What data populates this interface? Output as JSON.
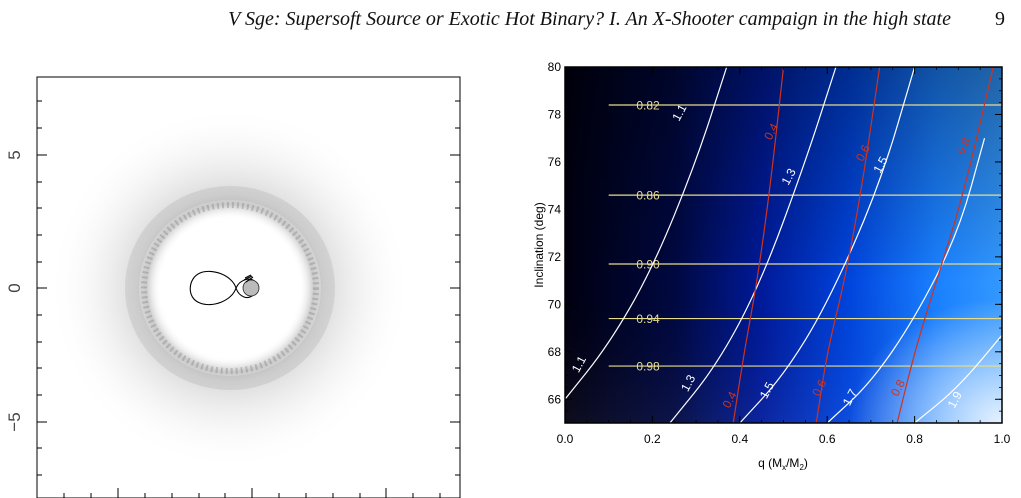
{
  "header": {
    "running_title": "V Sge: Supersoft Source or Exotic Hot Binary? I. An X-Shooter campaign in the high state",
    "page_number": "9"
  },
  "left_panel": {
    "y_ticks": [
      "5",
      "0",
      "−5"
    ]
  },
  "chart_data": [
    {
      "type": "scatter",
      "description_note": "",
      "y_tick_labels": [
        "5",
        "0",
        "−5"
      ],
      "ylim": [
        -7.5,
        7.5
      ]
    },
    {
      "type": "heatmap",
      "xlabel": "q (M_x/M_2)",
      "ylabel": "Inclination (deg)",
      "xlim": [
        0.0,
        1.0
      ],
      "ylim": [
        65,
        80
      ],
      "x_tick_labels": [
        "0.0",
        "0.2",
        "0.4",
        "0.6",
        "0.8",
        "1.0"
      ],
      "y_tick_labels": [
        "66",
        "68",
        "70",
        "72",
        "74",
        "76",
        "78",
        "80"
      ],
      "yellow_contours": [
        {
          "label": "0.82",
          "inclination": 78.4
        },
        {
          "label": "0.86",
          "inclination": 74.6
        },
        {
          "label": "0.90",
          "inclination": 71.7
        },
        {
          "label": "0.94",
          "inclination": 69.4
        },
        {
          "label": "0.98",
          "inclination": 67.4
        }
      ],
      "white_contours": [
        {
          "label": "1.1",
          "points": [
            [
              0.0,
              66.0
            ],
            [
              0.1,
              68.3
            ],
            [
              0.2,
              71.5
            ],
            [
              0.3,
              76.0
            ],
            [
              0.37,
              80.0
            ]
          ],
          "label_positions": [
            [
              0.04,
              67.4
            ],
            [
              0.27,
              78.0
            ]
          ]
        },
        {
          "label": "1.3",
          "points": [
            [
              0.24,
              65.0
            ],
            [
              0.35,
              67.5
            ],
            [
              0.45,
              71.0
            ],
            [
              0.55,
              76.0
            ],
            [
              0.62,
              80.0
            ]
          ],
          "label_positions": [
            [
              0.29,
              66.6
            ],
            [
              0.52,
              75.3
            ]
          ]
        },
        {
          "label": "1.5",
          "points": [
            [
              0.4,
              65.0
            ],
            [
              0.5,
              67.0
            ],
            [
              0.6,
              70.0
            ],
            [
              0.72,
              75.0
            ],
            [
              0.8,
              80.0
            ]
          ],
          "label_positions": [
            [
              0.47,
              66.3
            ],
            [
              0.73,
              75.8
            ]
          ]
        },
        {
          "label": "1.7",
          "points": [
            [
              0.6,
              65.0
            ],
            [
              0.7,
              66.7
            ],
            [
              0.8,
              69.4
            ],
            [
              0.9,
              73.0
            ],
            [
              0.96,
              77.0
            ]
          ],
          "label_positions": [
            [
              0.66,
              66.0
            ]
          ]
        },
        {
          "label": "1.9",
          "points": [
            [
              0.8,
              65.0
            ],
            [
              0.9,
              66.5
            ],
            [
              1.0,
              68.7
            ]
          ],
          "label_positions": [
            [
              0.9,
              65.9
            ]
          ]
        }
      ],
      "red_contours": [
        {
          "label": "0.4",
          "points": [
            [
              0.385,
              65.0
            ],
            [
              0.41,
              68.0
            ],
            [
              0.44,
              71.0
            ],
            [
              0.47,
              75.0
            ],
            [
              0.5,
              80.0
            ]
          ],
          "label_positions": [
            [
              0.385,
              65.9
            ],
            [
              0.48,
              77.2
            ]
          ]
        },
        {
          "label": "0.6",
          "points": [
            [
              0.575,
              65.0
            ],
            [
              0.6,
              68.0
            ],
            [
              0.64,
              71.0
            ],
            [
              0.68,
              75.0
            ],
            [
              0.72,
              80.0
            ]
          ],
          "label_positions": [
            [
              0.59,
              66.4
            ],
            [
              0.69,
              76.3
            ]
          ]
        },
        {
          "label": "0.8",
          "points": [
            [
              0.76,
              65.0
            ],
            [
              0.8,
              68.0
            ],
            [
              0.85,
              71.0
            ],
            [
              0.91,
              74.5
            ],
            [
              0.98,
              80.0
            ]
          ],
          "label_positions": [
            [
              0.77,
              66.4
            ],
            [
              0.92,
              76.6
            ]
          ]
        }
      ],
      "colormap": {
        "dark": "#000000",
        "mid": "#0033cc",
        "light": "#3399ff",
        "corner": "#e6f2ff"
      },
      "colors": {
        "yellow": "#e6dc8c",
        "white": "#ffffff",
        "red": "#cc3322"
      }
    }
  ]
}
